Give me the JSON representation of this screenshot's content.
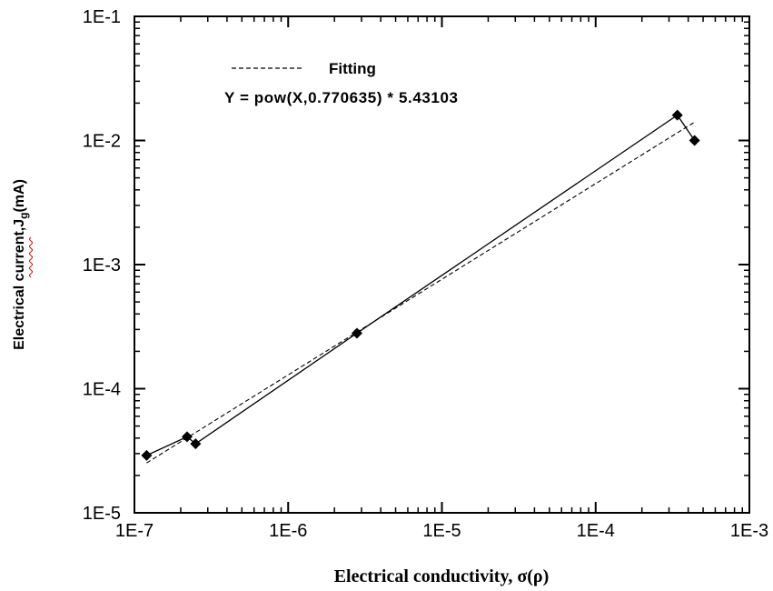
{
  "chart_data": {
    "type": "line",
    "x_scale": "log",
    "y_scale": "log",
    "xlim": [
      1e-07,
      0.001
    ],
    "ylim": [
      1e-05,
      0.1
    ],
    "x_ticks": [
      "1E-7",
      "1E-6",
      "1E-5",
      "1E-4",
      "1E-3"
    ],
    "y_ticks": [
      "1E-5",
      "1E-4",
      "1E-3",
      "1E-2",
      "1E-1"
    ],
    "xlabel": "Electrical conductivity, σ(ρ)",
    "ylabel": {
      "main": "Electrical current,J",
      "sub": "g",
      "unit": "(mA)"
    },
    "legend": {
      "position": "top-left",
      "label": "Fitting",
      "equation": "Y = pow(X,0.770635) * 5.43103"
    },
    "series": [
      {
        "style": "solid-with-diamond-markers",
        "x": [
          1.2e-07,
          2.2e-07,
          2.5e-07,
          2.8e-06,
          0.00034,
          0.00044
        ],
        "y": [
          2.9e-05,
          4.1e-05,
          3.6e-05,
          0.00028,
          0.016,
          0.01
        ]
      },
      {
        "name": "Fitting",
        "style": "dashed",
        "x": [
          1.2e-07,
          0.00044
        ],
        "exponent": 0.770635,
        "coefficient": 5.43103
      }
    ],
    "colors": {
      "line": "#000000",
      "underline": "#cc0000"
    }
  }
}
